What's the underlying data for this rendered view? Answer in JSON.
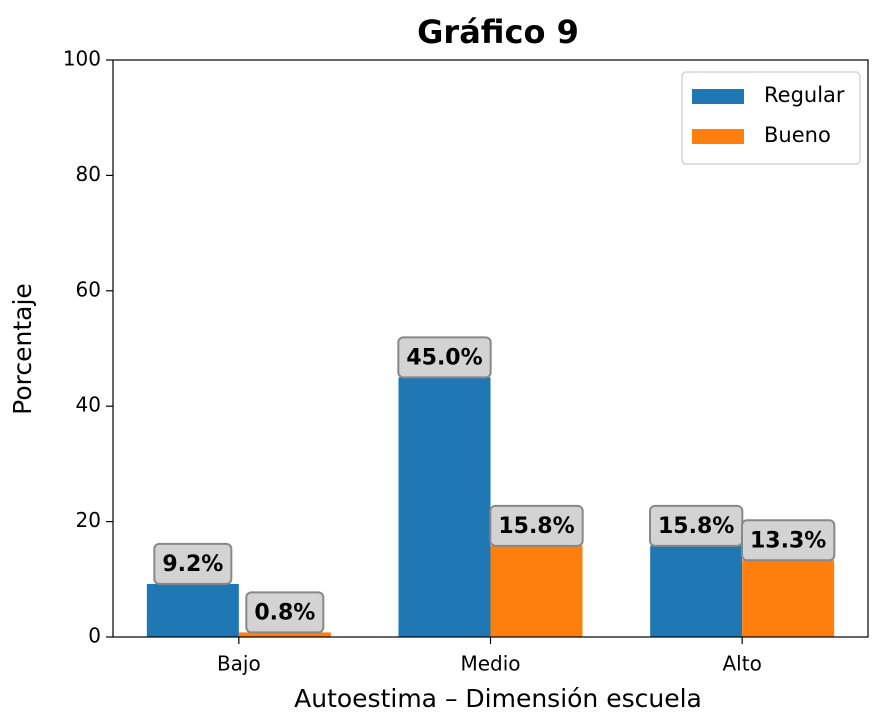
{
  "chart_data": {
    "type": "bar",
    "title": "Gráfico 9",
    "xlabel": "Autoestima – Dimensión escuela",
    "ylabel": "Porcentaje",
    "categories": [
      "Bajo",
      "Medio",
      "Alto"
    ],
    "series": [
      {
        "name": "Regular",
        "color": "#1f77b4",
        "values": [
          9.2,
          45.0,
          15.8
        ],
        "value_labels": [
          "9.2%",
          "45.0%",
          "15.8%"
        ]
      },
      {
        "name": "Bueno",
        "color": "#ff7f0e",
        "values": [
          0.8,
          15.8,
          13.3
        ],
        "value_labels": [
          "0.8%",
          "15.8%",
          "13.3%"
        ]
      }
    ],
    "ylim": [
      0,
      100
    ],
    "yticks": [
      0,
      20,
      40,
      60,
      80,
      100
    ],
    "legend": "upper right"
  }
}
